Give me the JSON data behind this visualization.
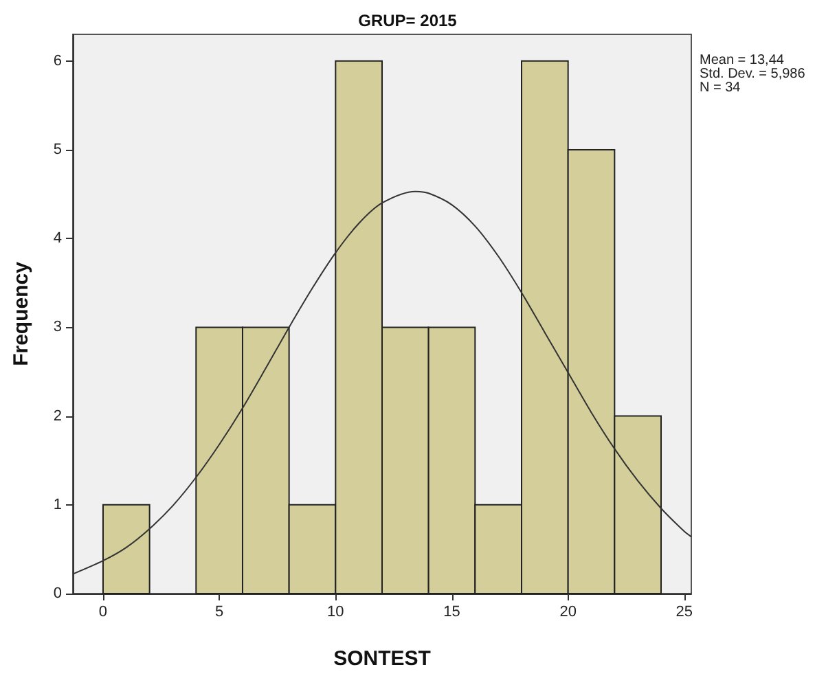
{
  "chart_data": {
    "type": "histogram",
    "title": "GRUP= 2015",
    "xlabel": "SONTEST",
    "ylabel": "Frequency",
    "annotations": [
      "Mean = 13,44",
      "Std. Dev. = 5,986",
      "N = 34"
    ],
    "xlim": [
      -1.3,
      25.3
    ],
    "xticks": [
      0,
      5,
      10,
      15,
      20,
      25
    ],
    "ylim": [
      0,
      6.3
    ],
    "yticks": [
      0,
      1,
      2,
      3,
      4,
      5,
      6
    ],
    "grid": false,
    "series": [
      {
        "color": "#d3ce9a",
        "bins": [
          0,
          2,
          4,
          6,
          8,
          10,
          12,
          14,
          16,
          18,
          20,
          22,
          24
        ],
        "values": [
          1,
          0,
          3,
          3,
          1,
          6,
          3,
          3,
          1,
          6,
          5,
          2
        ]
      },
      {
        "type": "line",
        "color": "#333333",
        "marker": "none",
        "line_style": "solid",
        "x": [
          -1.3,
          0,
          1,
          2,
          3,
          4,
          5,
          6,
          7,
          8,
          9,
          10,
          11,
          12,
          13.44,
          14,
          15,
          16,
          17,
          18,
          19,
          20,
          21,
          22,
          23,
          24,
          25,
          25.3
        ],
        "values": [
          0.22,
          0.37,
          0.52,
          0.73,
          0.99,
          1.31,
          1.68,
          2.09,
          2.54,
          3.0,
          3.44,
          3.84,
          4.17,
          4.4,
          4.53,
          4.51,
          4.38,
          4.14,
          3.8,
          3.39,
          2.94,
          2.49,
          2.04,
          1.63,
          1.27,
          0.96,
          0.7,
          0.64
        ]
      }
    ]
  }
}
